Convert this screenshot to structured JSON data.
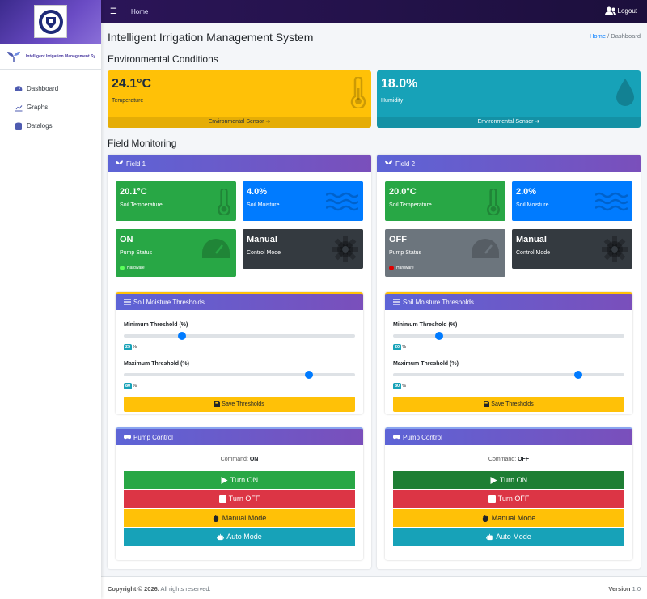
{
  "topbar": {
    "home_label": "Home",
    "logout_label": "Logout"
  },
  "sidebar": {
    "brand_text": "Intelligent Irrigation Management Sy",
    "items": [
      {
        "label": "Dashboard",
        "icon": "gauge-icon"
      },
      {
        "label": "Graphs",
        "icon": "chart-line-icon"
      },
      {
        "label": "Datalogs",
        "icon": "database-icon"
      }
    ]
  },
  "header": {
    "title": "Intelligent Irrigation Management System",
    "breadcrumb": {
      "home": "Home",
      "separator": "/",
      "current": "Dashboard"
    }
  },
  "environment": {
    "title": "Environmental Conditions",
    "temperature": {
      "value": "24.1°C",
      "label": "Temperature",
      "footer": "Environmental Sensor",
      "color": "#ffc107"
    },
    "humidity": {
      "value": "18.0%",
      "label": "Humidity",
      "footer": "Environmental Sensor",
      "color": "#17a2b8"
    }
  },
  "field_monitoring_title": "Field Monitoring",
  "fields": [
    {
      "name": "Field 1",
      "soil_temp": {
        "value": "20.1°C",
        "label": "Soil Temperature"
      },
      "soil_moisture": {
        "value": "4.0%",
        "label": "Soil Moisture"
      },
      "pump": {
        "value": "ON",
        "label": "Pump Status",
        "hw": "Hardware",
        "hw_color": "#28a745",
        "box_color": "#28a745"
      },
      "mode": {
        "value": "Manual",
        "label": "Control Mode"
      },
      "thresholds": {
        "title": "Soil Moisture Thresholds",
        "min_label": "Minimum Threshold (%)",
        "min_value": "25",
        "min_pct": 25,
        "max_label": "Maximum Threshold (%)",
        "max_value": "80",
        "max_pct": 80,
        "unit": "%",
        "save_label": "Save Thresholds"
      },
      "pump_control": {
        "title": "Pump Control",
        "command_label": "Command:",
        "command": "ON",
        "on_label": "Turn ON",
        "off_label": "Turn OFF",
        "manual_label": "Manual Mode",
        "auto_label": "Auto Mode"
      }
    },
    {
      "name": "Field 2",
      "soil_temp": {
        "value": "20.0°C",
        "label": "Soil Temperature"
      },
      "soil_moisture": {
        "value": "2.0%",
        "label": "Soil Moisture"
      },
      "pump": {
        "value": "OFF",
        "label": "Pump Status",
        "hw": "Hardware",
        "hw_color": "#dc3545",
        "box_color": "#6c757d"
      },
      "mode": {
        "value": "Manual",
        "label": "Control Mode"
      },
      "thresholds": {
        "title": "Soil Moisture Thresholds",
        "min_label": "Minimum Threshold (%)",
        "min_value": "20",
        "min_pct": 20,
        "max_label": "Maximum Threshold (%)",
        "max_value": "80",
        "max_pct": 80,
        "unit": "%",
        "save_label": "Save Thresholds"
      },
      "pump_control": {
        "title": "Pump Control",
        "command_label": "Command:",
        "command": "OFF",
        "on_label": "Turn ON",
        "off_label": "Turn OFF",
        "manual_label": "Manual Mode",
        "auto_label": "Auto Mode"
      }
    }
  ],
  "footer": {
    "copyright_bold": "Copyright © 2026.",
    "copyright_rest": " All rights reserved.",
    "version_label": "Version",
    "version": " 1.0"
  }
}
